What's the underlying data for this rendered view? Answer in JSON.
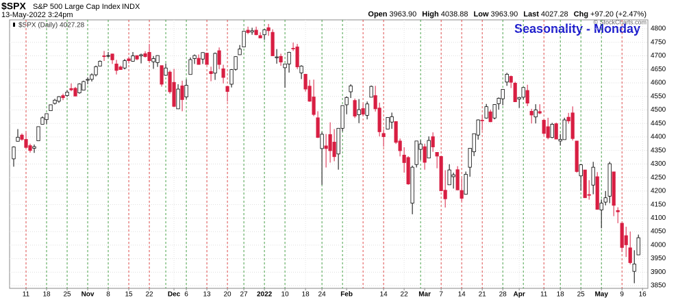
{
  "chart_data": {
    "type": "candlestick",
    "title": "$SPX",
    "subtitle": "S&P 500 Large Cap Index",
    "exchange": "INDX",
    "date": "13-May-2022 3:24pm",
    "quote": [
      {
        "label": "Open",
        "value": "3963.90"
      },
      {
        "label": "High",
        "value": "4038.88"
      },
      {
        "label": "Low",
        "value": "3963.90"
      },
      {
        "label": "Last",
        "value": "4027.28"
      },
      {
        "label": "Chg",
        "value": "+97.20 (+2.47%)"
      }
    ],
    "legend": "$SPX (Daily) 4027.28",
    "annotation": "Seasonality - Monday",
    "watermark": "© StockCharts.com",
    "up_color": "#ffffff",
    "down_color": "#d81e42",
    "monday_up_color": "#1a8a1a",
    "monday_down_color": "#d81e1e",
    "grid": true,
    "ylim": [
      3840,
      4833
    ],
    "yticks": [
      3850,
      3900,
      3950,
      4000,
      4050,
      4100,
      4150,
      4200,
      4250,
      4300,
      4350,
      4400,
      4450,
      4500,
      4550,
      4600,
      4650,
      4700,
      4750,
      4800
    ],
    "xlim": [
      -1,
      154.3
    ],
    "xticks": [
      {
        "value": 3,
        "label": "11"
      },
      {
        "value": 8,
        "label": "18"
      },
      {
        "value": 13,
        "label": "25"
      },
      {
        "value": 18,
        "label": "Nov"
      },
      {
        "value": 23,
        "label": "8"
      },
      {
        "value": 28,
        "label": "15"
      },
      {
        "value": 33,
        "label": "22"
      },
      {
        "value": 39,
        "label": "Dec"
      },
      {
        "value": 42,
        "label": "6"
      },
      {
        "value": 47,
        "label": "13"
      },
      {
        "value": 52,
        "label": "20"
      },
      {
        "value": 56,
        "label": "27"
      },
      {
        "value": 61,
        "label": "2022"
      },
      {
        "value": 66,
        "label": "10"
      },
      {
        "value": 71,
        "label": "18"
      },
      {
        "value": 75,
        "label": "24"
      },
      {
        "value": 81,
        "label": "Feb"
      },
      {
        "value": 90,
        "label": "14"
      },
      {
        "value": 95,
        "label": "22"
      },
      {
        "value": 100,
        "label": "Mar"
      },
      {
        "value": 104,
        "label": "7"
      },
      {
        "value": 109,
        "label": "14"
      },
      {
        "value": 114,
        "label": "21"
      },
      {
        "value": 119,
        "label": "28"
      },
      {
        "value": 123,
        "label": "Apr"
      },
      {
        "value": 129,
        "label": "11"
      },
      {
        "value": 133,
        "label": "18"
      },
      {
        "value": 138,
        "label": "25"
      },
      {
        "value": 143,
        "label": "May"
      },
      {
        "value": 148,
        "label": "9"
      },
      {
        "value": 153,
        "label": "16"
      }
    ],
    "seasonality_days": [
      3,
      8,
      13,
      18,
      23,
      28,
      33,
      37,
      42,
      47,
      52,
      56,
      61,
      66,
      75,
      80,
      85,
      90,
      99,
      104,
      109,
      114,
      119,
      124,
      129,
      133,
      138,
      143,
      148
    ],
    "ohlc": [
      [
        4319,
        4365,
        4290,
        4363
      ],
      [
        4384,
        4429,
        4383,
        4399
      ],
      [
        4407,
        4413,
        4386,
        4391
      ],
      [
        4391,
        4416,
        4360,
        4361
      ],
      [
        4368,
        4375,
        4342,
        4350
      ],
      [
        4358,
        4372,
        4341,
        4364
      ],
      [
        4386,
        4439,
        4386,
        4438
      ],
      [
        4447,
        4476,
        4447,
        4471
      ],
      [
        4464,
        4487,
        4448,
        4486
      ],
      [
        4497,
        4520,
        4497,
        4519
      ],
      [
        4524,
        4541,
        4520,
        4536
      ],
      [
        4532,
        4551,
        4526,
        4549
      ],
      [
        4553,
        4560,
        4536,
        4545
      ],
      [
        4553,
        4573,
        4548,
        4566
      ],
      [
        4579,
        4598,
        4569,
        4574
      ],
      [
        4580,
        4585,
        4551,
        4551
      ],
      [
        4563,
        4598,
        4560,
        4596
      ],
      [
        4573,
        4608,
        4573,
        4605
      ],
      [
        4610,
        4621,
        4595,
        4613
      ],
      [
        4613,
        4635,
        4605,
        4630
      ],
      [
        4630,
        4664,
        4624,
        4660
      ],
      [
        4662,
        4683,
        4662,
        4680
      ],
      [
        4700,
        4718,
        4681,
        4697
      ],
      [
        4701,
        4714,
        4694,
        4701
      ],
      [
        4707,
        4708,
        4670,
        4685
      ],
      [
        4670,
        4685,
        4631,
        4646
      ],
      [
        4659,
        4664,
        4648,
        4649
      ],
      [
        4655,
        4688,
        4650,
        4682
      ],
      [
        4689,
        4697,
        4672,
        4682
      ],
      [
        4680,
        4714,
        4679,
        4700
      ],
      [
        4701,
        4701,
        4684,
        4688
      ],
      [
        4700,
        4708,
        4672,
        4704
      ],
      [
        4708,
        4717,
        4694,
        4697
      ],
      [
        4713,
        4744,
        4680,
        4682
      ],
      [
        4678,
        4699,
        4652,
        4690
      ],
      [
        4675,
        4702,
        4659,
        4701
      ],
      [
        4664,
        4664,
        4586,
        4595
      ],
      [
        4628,
        4672,
        4626,
        4655
      ],
      [
        4640,
        4646,
        4560,
        4567
      ],
      [
        4602,
        4652,
        4510,
        4513
      ],
      [
        4504,
        4595,
        4504,
        4577
      ],
      [
        4589,
        4608,
        4495,
        4538
      ],
      [
        4548,
        4613,
        4540,
        4591
      ],
      [
        4631,
        4694,
        4631,
        4686
      ],
      [
        4690,
        4705,
        4670,
        4701
      ],
      [
        4691,
        4705,
        4667,
        4668
      ],
      [
        4688,
        4713,
        4670,
        4712
      ],
      [
        4710,
        4711,
        4667,
        4668
      ],
      [
        4642,
        4660,
        4606,
        4634
      ],
      [
        4636,
        4712,
        4611,
        4709
      ],
      [
        4719,
        4731,
        4651,
        4668
      ],
      [
        4652,
        4667,
        4598,
        4620
      ],
      [
        4587,
        4587,
        4531,
        4568
      ],
      [
        4595,
        4651,
        4583,
        4649
      ],
      [
        4650,
        4698,
        4645,
        4697
      ],
      [
        4704,
        4740,
        4704,
        4725
      ],
      [
        4733,
        4791,
        4733,
        4791
      ],
      [
        4795,
        4808,
        4780,
        4786
      ],
      [
        4788,
        4804,
        4778,
        4793
      ],
      [
        4795,
        4808,
        4776,
        4778
      ],
      [
        4775,
        4787,
        4765,
        4766
      ],
      [
        4778,
        4797,
        4759,
        4796
      ],
      [
        4804,
        4818,
        4774,
        4793
      ],
      [
        4787,
        4798,
        4700,
        4700
      ],
      [
        4693,
        4725,
        4671,
        4696
      ],
      [
        4698,
        4708,
        4663,
        4677
      ],
      [
        4656,
        4670,
        4582,
        4670
      ],
      [
        4670,
        4715,
        4638,
        4713
      ],
      [
        4728,
        4749,
        4718,
        4726
      ],
      [
        4733,
        4744,
        4651,
        4659
      ],
      [
        4637,
        4665,
        4614,
        4662
      ],
      [
        4632,
        4632,
        4568,
        4577
      ],
      [
        4588,
        4611,
        4530,
        4532
      ],
      [
        4548,
        4612,
        4477,
        4483
      ],
      [
        4471,
        4495,
        4396,
        4398
      ],
      [
        4357,
        4418,
        4223,
        4410
      ],
      [
        4367,
        4411,
        4287,
        4357
      ],
      [
        4409,
        4454,
        4305,
        4349
      ],
      [
        4381,
        4429,
        4310,
        4327
      ],
      [
        4337,
        4433,
        4279,
        4432
      ],
      [
        4432,
        4517,
        4420,
        4516
      ],
      [
        4519,
        4550,
        4484,
        4546
      ],
      [
        4567,
        4595,
        4544,
        4589
      ],
      [
        4535,
        4542,
        4470,
        4477
      ],
      [
        4482,
        4540,
        4451,
        4501
      ],
      [
        4505,
        4522,
        4476,
        4484
      ],
      [
        4480,
        4531,
        4465,
        4522
      ],
      [
        4547,
        4590,
        4547,
        4587
      ],
      [
        4553,
        4589,
        4494,
        4504
      ],
      [
        4507,
        4527,
        4402,
        4419
      ],
      [
        4413,
        4428,
        4364,
        4401
      ],
      [
        4429,
        4472,
        4429,
        4472
      ],
      [
        4455,
        4490,
        4430,
        4475
      ],
      [
        4457,
        4457,
        4374,
        4380
      ],
      [
        4385,
        4394,
        4328,
        4349
      ],
      [
        4333,
        4362,
        4268,
        4305
      ],
      [
        4324,
        4329,
        4223,
        4226
      ],
      [
        4155,
        4294,
        4114,
        4288
      ],
      [
        4298,
        4385,
        4287,
        4385
      ],
      [
        4354,
        4388,
        4315,
        4374
      ],
      [
        4364,
        4375,
        4279,
        4306
      ],
      [
        4322,
        4402,
        4322,
        4387
      ],
      [
        4401,
        4417,
        4345,
        4363
      ],
      [
        4343,
        4343,
        4284,
        4329
      ],
      [
        4328,
        4329,
        4199,
        4201
      ],
      [
        4203,
        4277,
        4139,
        4171
      ],
      [
        4223,
        4299,
        4223,
        4278
      ],
      [
        4253,
        4268,
        4209,
        4260
      ],
      [
        4279,
        4292,
        4203,
        4204
      ],
      [
        4202,
        4247,
        4162,
        4173
      ],
      [
        4188,
        4272,
        4187,
        4262
      ],
      [
        4288,
        4358,
        4253,
        4358
      ],
      [
        4345,
        4412,
        4329,
        4412
      ],
      [
        4407,
        4465,
        4390,
        4463
      ],
      [
        4462,
        4481,
        4424,
        4461
      ],
      [
        4470,
        4522,
        4468,
        4512
      ],
      [
        4493,
        4501,
        4455,
        4456
      ],
      [
        4470,
        4521,
        4465,
        4520
      ],
      [
        4523,
        4546,
        4501,
        4543
      ],
      [
        4541,
        4575,
        4517,
        4576
      ],
      [
        4603,
        4637,
        4589,
        4632
      ],
      [
        4624,
        4627,
        4581,
        4602
      ],
      [
        4599,
        4604,
        4530,
        4530
      ],
      [
        4540,
        4548,
        4507,
        4546
      ],
      [
        4547,
        4583,
        4539,
        4583
      ],
      [
        4572,
        4593,
        4514,
        4525
      ],
      [
        4495,
        4504,
        4450,
        4481
      ],
      [
        4474,
        4521,
        4450,
        4500
      ],
      [
        4494,
        4521,
        4484,
        4488
      ],
      [
        4462,
        4464,
        4408,
        4413
      ],
      [
        4438,
        4471,
        4391,
        4397
      ],
      [
        4398,
        4452,
        4395,
        4447
      ],
      [
        4449,
        4453,
        4392,
        4392
      ],
      [
        4385,
        4411,
        4368,
        4391
      ],
      [
        4390,
        4471,
        4390,
        4463
      ],
      [
        4473,
        4489,
        4449,
        4459
      ],
      [
        4489,
        4513,
        4387,
        4394
      ],
      [
        4385,
        4386,
        4268,
        4272
      ],
      [
        4256,
        4299,
        4201,
        4297
      ],
      [
        4278,
        4278,
        4175,
        4175
      ],
      [
        4187,
        4240,
        4168,
        4184
      ],
      [
        4222,
        4308,
        4188,
        4288
      ],
      [
        4253,
        4270,
        4131,
        4132
      ],
      [
        4130,
        4169,
        4062,
        4155
      ],
      [
        4159,
        4200,
        4147,
        4175
      ],
      [
        4181,
        4308,
        4155,
        4301
      ],
      [
        4271,
        4271,
        4107,
        4147
      ],
      [
        4128,
        4140,
        4081,
        4123
      ],
      [
        4081,
        4082,
        3975,
        3991
      ],
      [
        4035,
        4068,
        3956,
        4001
      ],
      [
        3990,
        4050,
        3929,
        3935
      ],
      [
        3903,
        3981,
        3859,
        3930
      ],
      [
        3963.9,
        4038.88,
        3963.9,
        4027.28
      ]
    ]
  }
}
